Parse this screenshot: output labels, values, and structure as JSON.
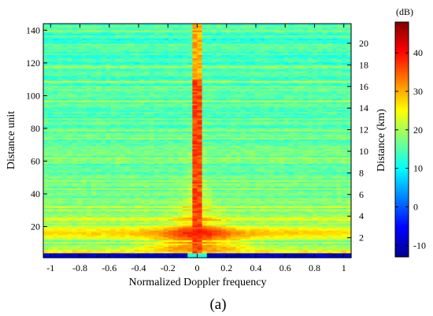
{
  "chart_data": {
    "type": "heatmap",
    "title": "",
    "xlabel": "Normalized Doppler frequency",
    "ylabel_left": "Distance unit",
    "ylabel_right": "Distance (km)",
    "panel_label": "(a)",
    "colorbar_unit": "(dB)",
    "colormap": "jet",
    "x_range": [
      -1.05,
      1.05
    ],
    "y_range": [
      1,
      144
    ],
    "color_range": [
      -13,
      48
    ],
    "x_ticks": [
      -1,
      -0.8,
      -0.6,
      -0.4,
      -0.2,
      0,
      0.2,
      0.4,
      0.6,
      0.8,
      1
    ],
    "x_tick_labels": [
      "-1",
      "-0.8",
      "-0.6",
      "-0.4",
      "-0.2",
      "0",
      "0.2",
      "0.4",
      "0.6",
      "0.8",
      "1"
    ],
    "y_left_ticks": [
      20,
      40,
      60,
      80,
      100,
      120,
      140
    ],
    "y_left_tick_labels": [
      "20",
      "40",
      "60",
      "80",
      "100",
      "120",
      "140"
    ],
    "y_right_ticks_km": [
      2,
      4,
      6,
      8,
      10,
      12,
      14,
      16,
      18,
      20
    ],
    "y_right_tick_labels": [
      "2",
      "4",
      "6",
      "8",
      "10",
      "12",
      "14",
      "16",
      "18",
      "20"
    ],
    "y_right_units_per_km": 6.6,
    "colorbar_ticks": [
      -10,
      0,
      10,
      20,
      30,
      40
    ],
    "colorbar_tick_labels": [
      "-10",
      "0",
      "10",
      "20",
      "30",
      "40"
    ],
    "n_doppler_bins": 64,
    "n_distance_units": 144,
    "features": {
      "zero_doppler_ridge_db": 36,
      "near_range_band_db": 28,
      "background_db": [
        10,
        16
      ],
      "low_rows_db": -8
    }
  }
}
